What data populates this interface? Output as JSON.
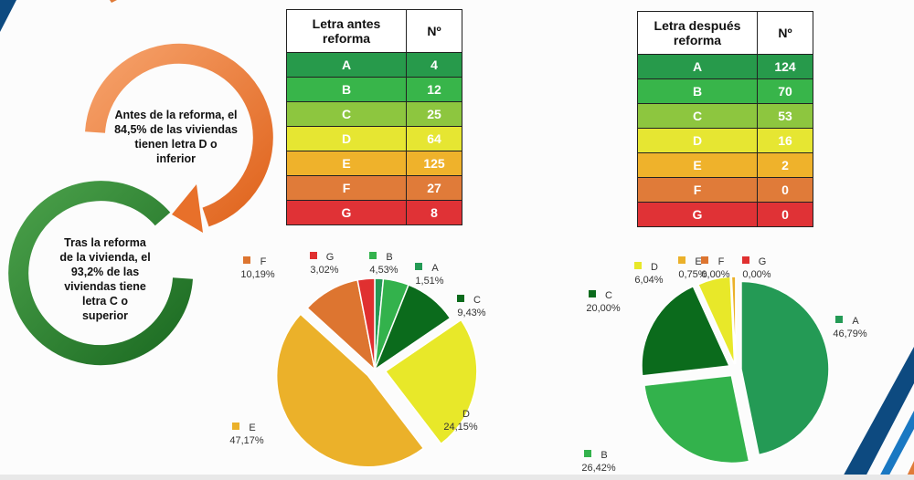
{
  "left_text": {
    "before": "Antes de la reforma, el 84,5% de las viviendas tienen letra D o inferior",
    "after": "Tras la reforma de la vivienda, el 93,2% de las viviendas tiene letra C o superior"
  },
  "table_before": {
    "headers": [
      "Letra antes reforma",
      "Nº"
    ],
    "rows": [
      [
        "A",
        "4"
      ],
      [
        "B",
        "12"
      ],
      [
        "C",
        "25"
      ],
      [
        "D",
        "64"
      ],
      [
        "E",
        "125"
      ],
      [
        "F",
        "27"
      ],
      [
        "G",
        "8"
      ]
    ]
  },
  "table_after": {
    "headers": [
      "Letra después reforma",
      "Nº"
    ],
    "rows": [
      [
        "A",
        "124"
      ],
      [
        "B",
        "70"
      ],
      [
        "C",
        "53"
      ],
      [
        "D",
        "16"
      ],
      [
        "E",
        "2"
      ],
      [
        "F",
        "0"
      ],
      [
        "G",
        "0"
      ]
    ]
  },
  "colors": {
    "table": [
      "#279a4b",
      "#38b54a",
      "#8dc63f",
      "#e6e632",
      "#efb22b",
      "#e07b39",
      "#e03236"
    ],
    "pie": [
      "#249a55",
      "#33b24c",
      "#0b6b1c",
      "#e8e829",
      "#ebb12a",
      "#dd7530",
      "#e03030"
    ]
  },
  "chart_data": [
    {
      "type": "pie",
      "title": "",
      "categories": [
        "A",
        "B",
        "C",
        "D",
        "E",
        "F",
        "G"
      ],
      "values": [
        1.51,
        4.53,
        9.43,
        24.15,
        47.17,
        10.19,
        3.02
      ],
      "labels": [
        "1,51%",
        "4,53%",
        "9,43%",
        "24,15%",
        "47,17%",
        "10,19%",
        "3,02%"
      ]
    },
    {
      "type": "pie",
      "title": "",
      "categories": [
        "A",
        "B",
        "C",
        "D",
        "E",
        "F",
        "G"
      ],
      "values": [
        46.79,
        26.42,
        20.0,
        6.04,
        0.75,
        0.0,
        0.0
      ],
      "labels": [
        "46,79%",
        "26,42%",
        "20,00%",
        "6,04%",
        "0,75%",
        "0,00%",
        "0,00%"
      ]
    }
  ]
}
